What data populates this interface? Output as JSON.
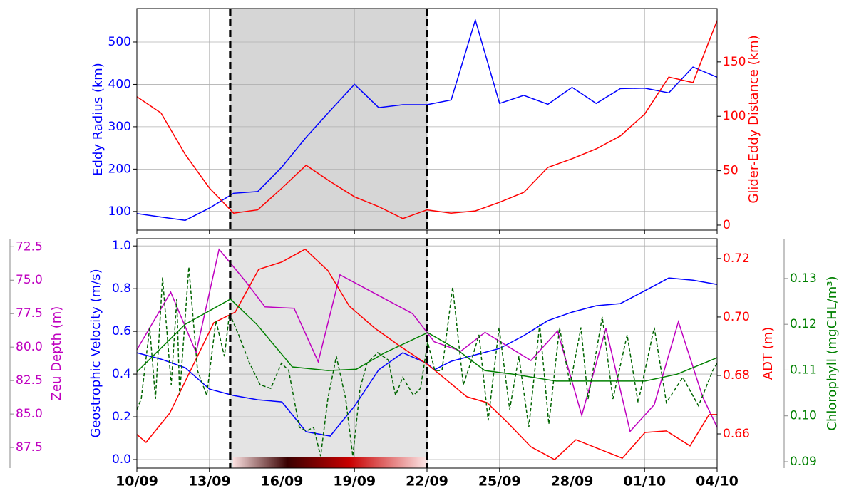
{
  "chart_data": [
    {
      "type": "line",
      "ylabel": "Eddy Radius (km)",
      "y2label": "Glider-Eddy Distance (km)",
      "xlim": [
        0,
        24
      ],
      "ylim": [
        56,
        579
      ],
      "yticks": [
        100,
        200,
        300,
        400,
        500
      ],
      "y2lim": [
        -4.6,
        199
      ],
      "y2ticks": [
        0,
        50,
        100,
        150
      ],
      "grid": true,
      "shade": [
        3.86,
        12
      ],
      "series": [
        {
          "color": "#0000ff",
          "x": [
            0,
            1,
            2,
            3,
            4,
            5,
            6,
            7,
            8,
            9,
            10,
            11,
            12,
            13,
            14,
            15,
            16,
            17,
            18,
            19,
            20,
            21,
            22,
            23,
            24
          ],
          "values": [
            95,
            87,
            79,
            108,
            143,
            147,
            205,
            275,
            338,
            400,
            345,
            352,
            352,
            363,
            552,
            355,
            374,
            353,
            393,
            355,
            390,
            391,
            380,
            441,
            417
          ]
        },
        {
          "color": "#ff0000",
          "axis": "y2",
          "x": [
            0,
            1,
            2,
            3,
            4,
            5,
            6,
            7,
            8,
            9,
            10,
            11,
            12,
            13,
            14,
            15,
            16,
            17,
            18,
            19,
            20,
            21,
            22,
            23,
            24
          ],
          "values": [
            118,
            103,
            65,
            34,
            11,
            14,
            34,
            55,
            40,
            26,
            17,
            6,
            14,
            11,
            13,
            21,
            30,
            53,
            61,
            70,
            82,
            102,
            136,
            131,
            188
          ]
        }
      ]
    },
    {
      "type": "line",
      "ylabel": "Geostrophic Velocity (m/s)",
      "y2label": "ADT (m)",
      "y3label": "Zeu Depth (m)",
      "y4label": "Chlorophyll (mgCHL/m³)",
      "xlim": [
        0,
        24
      ],
      "xticks": [
        {
          "value": 0,
          "label": "10/09"
        },
        {
          "value": 3,
          "label": "13/09"
        },
        {
          "value": 6,
          "label": "16/09"
        },
        {
          "value": 9,
          "label": "19/09"
        },
        {
          "value": 12,
          "label": "22/09"
        },
        {
          "value": 15,
          "label": "25/09"
        },
        {
          "value": 18,
          "label": "28/09"
        },
        {
          "value": 21,
          "label": "01/10"
        },
        {
          "value": 24,
          "label": "04/10"
        }
      ],
      "ylim": [
        -0.04,
        1.034
      ],
      "yticks": [
        {
          "value": 0,
          "label": "0.0"
        },
        0.2,
        0.4,
        0.6,
        0.8,
        {
          "value": 1,
          "label": "1.0"
        }
      ],
      "y2lim": [
        0.6483,
        0.7268
      ],
      "y2ticks": [
        0.66,
        0.68,
        {
          "value": 0.7,
          "label": "0.70"
        },
        0.72
      ],
      "y3lim": [
        89.04,
        71.9
      ],
      "y3ticks": [
        72.5,
        {
          "value": 75,
          "label": "75.0"
        },
        77.5,
        {
          "value": 80,
          "label": "80.0"
        },
        82.5,
        {
          "value": 85,
          "label": "85.0"
        },
        87.5
      ],
      "y4lim": [
        0.0886,
        0.1387
      ],
      "y4ticks": [
        0.09,
        {
          "value": 0.1,
          "label": "0.10"
        },
        0.11,
        0.12,
        0.13
      ],
      "grid": true,
      "shade": [
        3.86,
        12
      ],
      "series": [
        {
          "color": "#0000ff",
          "x": [
            0,
            1,
            2,
            3,
            4,
            5,
            6,
            7,
            8,
            9,
            10,
            11,
            12,
            12.3,
            13,
            14,
            15,
            16,
            17,
            18,
            19,
            20,
            21,
            22,
            23,
            24
          ],
          "values": [
            0.5,
            0.47,
            0.43,
            0.33,
            0.3,
            0.28,
            0.27,
            0.13,
            0.11,
            0.25,
            0.42,
            0.5,
            0.45,
            0.42,
            0.46,
            0.49,
            0.52,
            0.58,
            0.65,
            0.69,
            0.72,
            0.73,
            0.79,
            0.85,
            0.84,
            0.82
          ]
        },
        {
          "color": "#bf00bf",
          "axis": "y3",
          "x": [
            0,
            1.4,
            2.45,
            3.4,
            4.5,
            5.3,
            6.5,
            7.5,
            8.4,
            11.4,
            12.3,
            13.4,
            14.4,
            16.3,
            17.4,
            18.4,
            19.4,
            20.4,
            21.4,
            22.4,
            23.4,
            24
          ],
          "values": [
            80.2,
            75.9,
            80.4,
            72.7,
            75.1,
            77.0,
            77.1,
            81.1,
            74.6,
            77.5,
            79.6,
            80.3,
            78.9,
            81.0,
            78.8,
            85.1,
            78.6,
            86.3,
            84.3,
            78.1,
            83.7,
            86.0
          ]
        },
        {
          "color": "#ff0000",
          "axis": "y2",
          "x": [
            0,
            0.38,
            1.36,
            3.18,
            4.07,
            5.04,
            5.99,
            6.96,
            7.9,
            8.79,
            9.82,
            10.85,
            12.03,
            12.68,
            13.65,
            14.48,
            15.33,
            16.3,
            17.28,
            18.16,
            19.1,
            20.08,
            21.02,
            21.9,
            22.88,
            23.67,
            24
          ],
          "values": [
            0.6598,
            0.6571,
            0.6671,
            0.698,
            0.7017,
            0.7163,
            0.7188,
            0.7232,
            0.7159,
            0.7037,
            0.6963,
            0.6902,
            0.6837,
            0.6793,
            0.6727,
            0.6707,
            0.6639,
            0.6556,
            0.6512,
            0.658,
            0.6549,
            0.6517,
            0.6605,
            0.661,
            0.6559,
            0.6666,
            0.6666
          ]
        },
        {
          "color": "#008000",
          "axis": "y4",
          "x": [
            0,
            2,
            3.87,
            4.96,
            6.43,
            7.9,
            9.08,
            10.26,
            12.03,
            13.21,
            14.39,
            15.57,
            17.34,
            19.4,
            21.02,
            22.35,
            24
          ],
          "values": [
            0.1096,
            0.12,
            0.1255,
            0.12,
            0.1107,
            0.1099,
            0.1102,
            0.1138,
            0.1182,
            0.1146,
            0.1099,
            0.1091,
            0.1076,
            0.1076,
            0.1076,
            0.1091,
            0.1127
          ]
        },
        {
          "color": "#006400",
          "axis": "y4",
          "linestyle": "dashed",
          "x": [
            0,
            0.18,
            0.53,
            0.77,
            1.06,
            1.42,
            1.65,
            1.77,
            2.15,
            2.36,
            2.51,
            2.89,
            3.27,
            3.62,
            3.83,
            4.21,
            4.66,
            5.1,
            5.54,
            5.98,
            6.28,
            6.72,
            7.01,
            7.31,
            7.6,
            7.9,
            8.25,
            8.64,
            8.93,
            9.23,
            9.52,
            9.96,
            10.4,
            10.7,
            11.0,
            11.44,
            11.73,
            12.03,
            12.32,
            12.62,
            13.06,
            13.5,
            13.8,
            14.15,
            14.53,
            14.98,
            15.42,
            15.8,
            16.21,
            16.66,
            17.04,
            17.48,
            17.92,
            18.37,
            18.66,
            19.25,
            19.69,
            20.28,
            20.73,
            21.4,
            21.9,
            22.58,
            23.23,
            23.82,
            24
          ],
          "values": [
            0.1014,
            0.1037,
            0.1193,
            0.1037,
            0.1302,
            0.1068,
            0.1255,
            0.1045,
            0.1325,
            0.1193,
            0.1099,
            0.1045,
            0.1208,
            0.113,
            0.1224,
            0.1177,
            0.1115,
            0.1068,
            0.106,
            0.1115,
            0.1099,
            0.0975,
            0.0967,
            0.0975,
            0.0912,
            0.1037,
            0.113,
            0.1037,
            0.0912,
            0.106,
            0.1115,
            0.1138,
            0.1122,
            0.1045,
            0.1084,
            0.1045,
            0.106,
            0.1161,
            0.1099,
            0.1099,
            0.1281,
            0.1068,
            0.1115,
            0.1177,
            0.099,
            0.1193,
            0.1014,
            0.113,
            0.0975,
            0.12,
            0.0982,
            0.1193,
            0.1068,
            0.1193,
            0.1037,
            0.1216,
            0.1037,
            0.1177,
            0.1029,
            0.1193,
            0.1029,
            0.1084,
            0.1022,
            0.1099,
            0.1115
          ]
        }
      ]
    }
  ]
}
